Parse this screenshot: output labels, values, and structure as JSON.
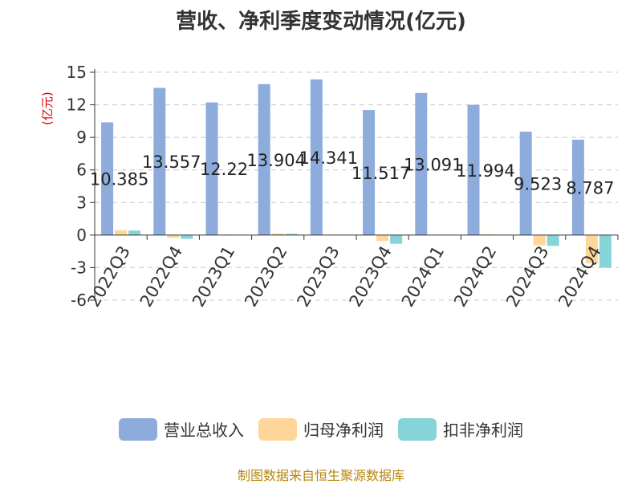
{
  "chart_data": {
    "type": "bar",
    "title": "营收、净利季度变动情况(亿元)",
    "ylabel": "(亿元)",
    "ylim": [
      -6,
      15
    ],
    "yticks": [
      15,
      12,
      9,
      6,
      3,
      0,
      -3,
      -6
    ],
    "grid": true,
    "legend_position": "bottom",
    "categories": [
      "2022Q3",
      "2022Q4",
      "2023Q1",
      "2023Q2",
      "2023Q3",
      "2023Q4",
      "2024Q1",
      "2024Q2",
      "2024Q3",
      "2024Q4"
    ],
    "series": [
      {
        "name": "营业总收入",
        "color": "#8eacdb",
        "values": [
          10.385,
          13.557,
          12.22,
          13.904,
          14.341,
          11.517,
          13.091,
          11.994,
          9.523,
          8.787
        ],
        "labels": [
          "10.385",
          "13.557",
          "12.22",
          "13.904",
          "14.341",
          "11.517",
          "13.091",
          "11.994",
          "9.523",
          "8.787"
        ]
      },
      {
        "name": "归母净利润",
        "color": "#ffd699",
        "values": [
          0.45,
          -0.25,
          0.05,
          0.15,
          0.03,
          -0.55,
          0.02,
          0.08,
          -0.95,
          -2.6
        ]
      },
      {
        "name": "扣非净利润",
        "color": "#87d4d8",
        "values": [
          0.42,
          -0.35,
          0.02,
          0.12,
          0.01,
          -0.8,
          0.01,
          0.03,
          -1.0,
          -3.0
        ]
      }
    ]
  },
  "source": "制图数据来自恒生聚源数据库"
}
